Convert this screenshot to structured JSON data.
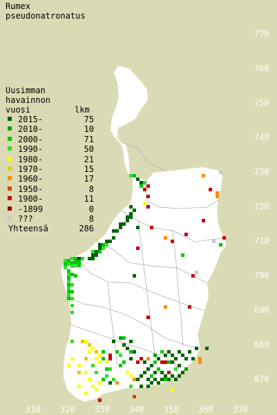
{
  "species": {
    "line1": "Rumex",
    "line2": "pseudonatronatus"
  },
  "legend": {
    "header": [
      "Uusimman",
      "havainnon",
      "vuosi"
    ],
    "count_header": "lkm",
    "rows": [
      {
        "label": "2015-",
        "count": "75",
        "color": "#006400"
      },
      {
        "label": "2010-",
        "count": "10",
        "color": "#00a000"
      },
      {
        "label": "2000-",
        "count": "71",
        "color": "#00c800"
      },
      {
        "label": "1990-",
        "count": "50",
        "color": "#32dc32"
      },
      {
        "label": "1980-",
        "count": "21",
        "color": "#ffff00"
      },
      {
        "label": "1970-",
        "count": "15",
        "color": "#e6c800"
      },
      {
        "label": "1960-",
        "count": "17",
        "color": "#ff8c00"
      },
      {
        "label": "1950-",
        "count": "8",
        "color": "#e63c00"
      },
      {
        "label": "1900-",
        "count": "11",
        "color": "#c80000"
      },
      {
        "label": "-1899",
        "count": "0",
        "color": "#960000"
      },
      {
        "label": "???",
        "count": "8",
        "color": "#c8c8c8"
      }
    ],
    "total_label": "Yhteensä",
    "total_count": "286"
  },
  "axes": {
    "y_ticks": [
      "770",
      "760",
      "750",
      "740",
      "730",
      "720",
      "710",
      "700",
      "690",
      "680",
      "670"
    ],
    "x_ticks": [
      "310",
      "320",
      "330",
      "340",
      "350",
      "360",
      "370"
    ]
  },
  "colors": {
    "background": "#dadbb4",
    "land": "#ffffff",
    "border": "#b0b0b0",
    "tick_text": "#ffffff"
  }
}
